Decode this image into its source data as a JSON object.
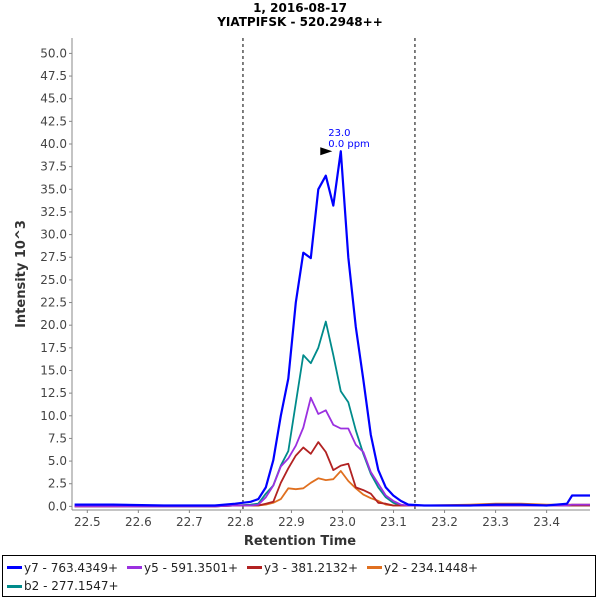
{
  "chart_data": {
    "type": "line",
    "title": "1, 2016-08-17",
    "subtitle": "YIATPIFSK - 520.2948++",
    "xlabel": "Retention Time",
    "ylabel": "Intensity 10^3",
    "xlim": [
      22.47,
      23.485
    ],
    "ylim": [
      -0.4,
      51.7
    ],
    "xticks": [
      "22.5",
      "22.6",
      "22.7",
      "22.8",
      "22.9",
      "23.0",
      "23.1",
      "23.2",
      "23.3",
      "23.4"
    ],
    "yticks": [
      "0.0",
      "2.5",
      "5.0",
      "7.5",
      "10.0",
      "12.5",
      "15.0",
      "17.5",
      "20.0",
      "22.5",
      "25.0",
      "27.5",
      "30.0",
      "32.5",
      "35.0",
      "37.5",
      "40.0",
      "42.5",
      "45.0",
      "47.5",
      "50.0"
    ],
    "grid": false,
    "legend_position": "bottom",
    "boundaries": [
      22.805,
      23.142
    ],
    "annotation": {
      "x": 22.982,
      "y": 39.2,
      "lines": [
        "23.0",
        "0.0 ppm"
      ]
    },
    "x": [
      22.475,
      22.55,
      22.65,
      22.75,
      22.79,
      22.82,
      22.835,
      22.8497,
      22.8644,
      22.8791,
      22.8938,
      22.9085,
      22.9232,
      22.9379,
      22.9526,
      22.9673,
      22.982,
      22.9967,
      23.0114,
      23.0261,
      23.0408,
      23.0555,
      23.0702,
      23.0849,
      23.0996,
      23.1143,
      23.129,
      23.16,
      23.25,
      23.3,
      23.35,
      23.4,
      23.44,
      23.45,
      23.485
    ],
    "series": [
      {
        "name": "y7 - 763.4349+",
        "color": "#0000ff",
        "values": [
          0.2,
          0.2,
          0.1,
          0.1,
          0.3,
          0.5,
          0.8,
          2.1,
          5.1,
          10,
          14.1,
          22.5,
          28,
          27.4,
          35,
          36.5,
          33.2,
          39.2,
          27.5,
          19.8,
          14,
          7.9,
          4,
          2.1,
          1.2,
          0.6,
          0.2,
          0.1,
          0.1,
          0.2,
          0.2,
          0.1,
          0.3,
          1.2,
          1.2
        ]
      },
      {
        "name": "y5 - 591.3501+",
        "color": "#9b30e0",
        "values": [
          0,
          0,
          0,
          0,
          0.1,
          0.1,
          0.2,
          1,
          2.3,
          4.4,
          5.3,
          6.7,
          8.7,
          12,
          10.2,
          10.6,
          9,
          8.6,
          8.6,
          6.8,
          6,
          3.8,
          2.5,
          1.2,
          0.6,
          0.2,
          0.1,
          0.1,
          0.1,
          0.1,
          0.1,
          0.1,
          0.1,
          0.2,
          0.2
        ]
      },
      {
        "name": "y3 - 381.2132+",
        "color": "#b22222",
        "values": [
          0,
          0,
          0,
          0,
          0.1,
          0.1,
          0.1,
          0.3,
          0.5,
          2.6,
          4.2,
          5.6,
          6.5,
          5.8,
          7.1,
          6,
          4,
          4.5,
          4.7,
          2.1,
          1.8,
          1.4,
          0.4,
          0.3,
          0.1,
          0.1,
          0.1,
          0.1,
          0.1,
          0.1,
          0.1,
          0.1,
          0.1,
          0.1,
          0.1
        ]
      },
      {
        "name": "y2 - 234.1448+",
        "color": "#e07020",
        "values": [
          0,
          0,
          0.1,
          0,
          0.1,
          0.1,
          0.1,
          0.2,
          0.4,
          0.8,
          2,
          1.9,
          2,
          2.6,
          3.1,
          2.9,
          3,
          3.9,
          2.8,
          2,
          1.3,
          0.9,
          0.6,
          0.2,
          0.1,
          0.1,
          0.1,
          0.1,
          0.2,
          0.3,
          0.3,
          0.2,
          0.2,
          0.2,
          0.2
        ]
      },
      {
        "name": "b2 - 277.1547+",
        "color": "#008b8b",
        "values": [
          0,
          0,
          0,
          0,
          0.1,
          0.2,
          0.3,
          1.4,
          2.3,
          4.5,
          6.1,
          11.4,
          16.7,
          15.8,
          17.5,
          20.4,
          16.7,
          12.7,
          11.5,
          8.4,
          5.8,
          3.6,
          2.1,
          1,
          0.4,
          0.1,
          0.1,
          0.1,
          0.1,
          0.1,
          0.1,
          0.1,
          0.1,
          0.1,
          0.1
        ]
      }
    ]
  }
}
